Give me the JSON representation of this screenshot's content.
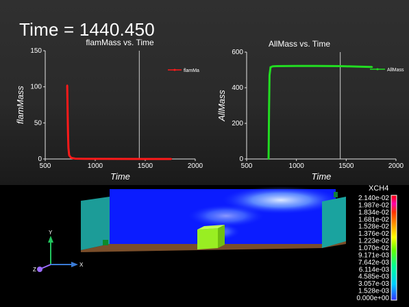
{
  "time_label": "Time = 1440.450",
  "scene": {
    "variable": "XCH4",
    "colorbar_labels": [
      "2.140e-02",
      "1.987e-02",
      "1.834e-02",
      "1.681e-02",
      "1.528e-02",
      "1.376e-02",
      "1.223e-02",
      "1.070e-02",
      "9.171e-03",
      "7.642e-03",
      "6.114e-03",
      "4.585e-03",
      "3.057e-03",
      "1.528e-03",
      "0.000e+00"
    ],
    "axes": {
      "x": "X",
      "y": "Y",
      "z": "Z"
    },
    "axis_colors": {
      "x": "#3a7bd5",
      "y": "#22c55e",
      "z": "#9b6bff"
    }
  },
  "chart_data": [
    {
      "type": "line",
      "title": "flamMass vs. Time",
      "xlabel": "Time",
      "ylabel": "flamMass",
      "xlim": [
        500,
        2000
      ],
      "ylim": [
        0,
        150
      ],
      "xticks": [
        "500",
        "1000",
        "1500",
        "2000"
      ],
      "yticks": [
        "0",
        "50",
        "100",
        "150"
      ],
      "current_time": 1440.45,
      "series": [
        {
          "name": "flamMa",
          "color": "#ff1a1a",
          "x": [
            720,
            722,
            725,
            728,
            732,
            740,
            760,
            800,
            900,
            1200,
            1500,
            1760
          ],
          "y": [
            102,
            85,
            60,
            35,
            15,
            5,
            1.5,
            0.5,
            0.2,
            0.1,
            0,
            0
          ]
        }
      ]
    },
    {
      "type": "line",
      "title": "AllMass vs. Time",
      "xlabel": "Time",
      "ylabel": "AllMass",
      "xlim": [
        500,
        2000
      ],
      "ylim": [
        0,
        600
      ],
      "xticks": [
        "500",
        "1000",
        "1500",
        "2000"
      ],
      "yticks": [
        "0",
        "200",
        "400",
        "600"
      ],
      "current_time": 1440.45,
      "series": [
        {
          "name": "AllMass",
          "color": "#22dd22",
          "x": [
            720,
            722,
            725,
            730,
            740,
            760,
            800,
            1000,
            1200,
            1440,
            1600,
            1760
          ],
          "y": [
            0,
            100,
            280,
            470,
            515,
            520,
            521,
            522,
            522,
            521,
            519,
            516
          ]
        }
      ]
    }
  ]
}
